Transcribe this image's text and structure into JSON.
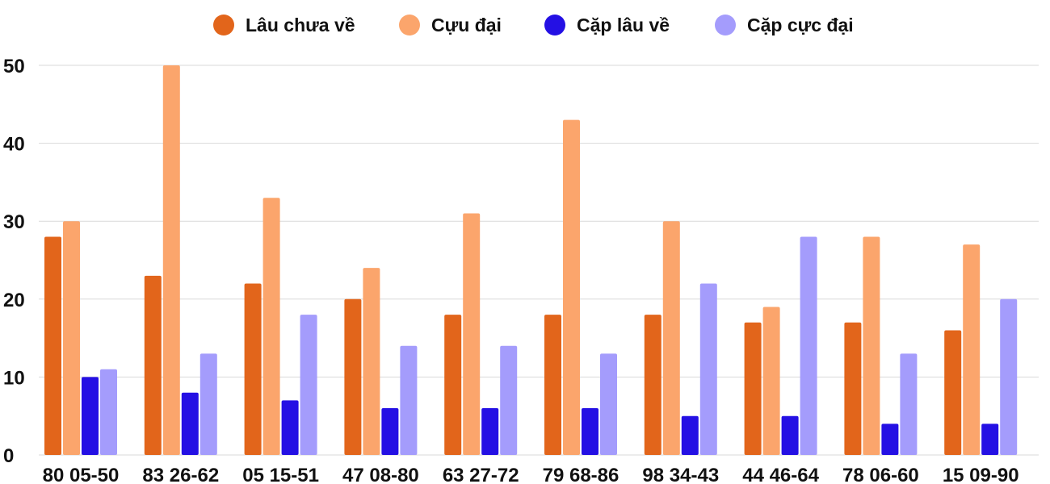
{
  "chart_data": {
    "type": "bar",
    "categories": [
      "80 05-50",
      "83 26-62",
      "05 15-51",
      "47 08-80",
      "63 27-72",
      "79 68-86",
      "98 34-43",
      "44 46-64",
      "78 06-60",
      "15 09-90"
    ],
    "series": [
      {
        "name": "Lâu chưa về",
        "color": "#E2651B",
        "values": [
          28,
          23,
          22,
          20,
          18,
          18,
          18,
          17,
          17,
          16
        ]
      },
      {
        "name": "Cựu đại",
        "color": "#FBA56C",
        "values": [
          30,
          50,
          33,
          24,
          31,
          43,
          30,
          19,
          28,
          27
        ]
      },
      {
        "name": "Cặp lâu về",
        "color": "#2410E4",
        "values": [
          10,
          8,
          7,
          6,
          6,
          6,
          5,
          5,
          4,
          4
        ]
      },
      {
        "name": "Cặp cực đại",
        "color": "#A49CFC",
        "values": [
          11,
          13,
          18,
          14,
          14,
          13,
          22,
          28,
          13,
          20
        ]
      }
    ],
    "ylim": [
      0,
      50
    ],
    "yticks": [
      "0",
      "10",
      "20",
      "30",
      "40",
      "50"
    ],
    "grid": true,
    "legend": "top-center",
    "title": "",
    "xlabel": "",
    "ylabel": ""
  }
}
